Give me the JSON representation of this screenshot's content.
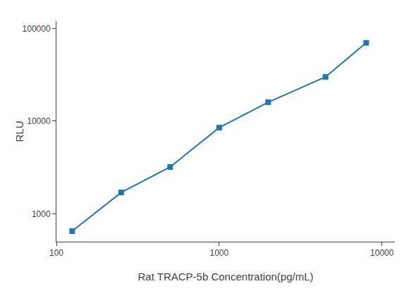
{
  "chart_data": {
    "type": "line",
    "x": [
      125,
      250,
      500,
      1000,
      2000,
      4500,
      8000
    ],
    "values": [
      650,
      1700,
      3200,
      8500,
      16000,
      30000,
      70000
    ],
    "xlabel": "Rat TRACP-5b Concentration(pg/mL)",
    "ylabel": "RLU",
    "xlim": [
      100,
      12000
    ],
    "ylim": [
      500,
      120000
    ],
    "xticks": [
      100,
      1000,
      10000
    ],
    "yticks": [
      1000,
      10000,
      100000
    ],
    "log": true,
    "grid": false,
    "marker": "square"
  }
}
